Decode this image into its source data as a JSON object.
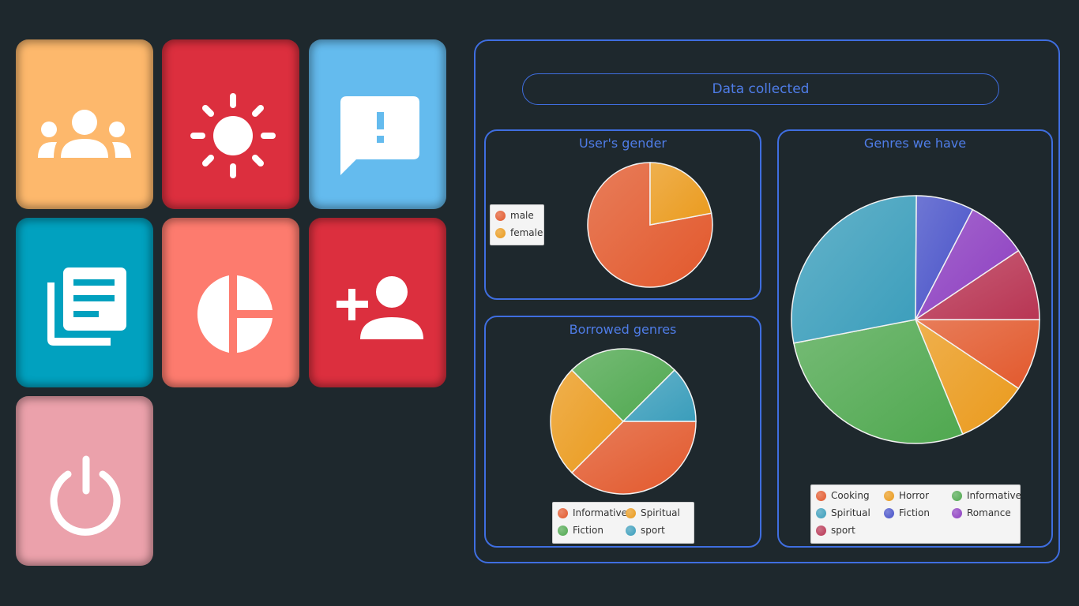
{
  "tiles": [
    {
      "name": "users",
      "icon": "group-icon",
      "color": "#fdb86c"
    },
    {
      "name": "brightness",
      "icon": "sun-icon",
      "color": "#dc2f3e"
    },
    {
      "name": "feedback",
      "icon": "feedback-icon",
      "color": "#64bbee"
    },
    {
      "name": "library",
      "icon": "library-books-icon",
      "color": "#01a1bf"
    },
    {
      "name": "statistics",
      "icon": "pie-chart-icon",
      "color": "#fd7b6e"
    },
    {
      "name": "add-user",
      "icon": "person-add-icon",
      "color": "#dc2f3e"
    },
    {
      "name": "power",
      "icon": "power-icon",
      "color": "#eba1ab"
    }
  ],
  "header": {
    "title": "Data collected"
  },
  "chart_data": [
    {
      "type": "pie",
      "title": "User's gender",
      "categories": [
        "male",
        "female"
      ],
      "values": [
        78,
        22
      ],
      "colors": [
        "#e2582c",
        "#ea9a1c"
      ],
      "legend_position": "left"
    },
    {
      "type": "pie",
      "title": "Borrowed genres",
      "categories": [
        "Informative",
        "Spiritual",
        "Fiction",
        "sport"
      ],
      "values": [
        37.5,
        25,
        25,
        12.5
      ],
      "colors": [
        "#e2582c",
        "#ea9a1c",
        "#4fa84f",
        "#3a9dbb"
      ],
      "legend_position": "bottom"
    },
    {
      "type": "pie",
      "title": "Genres we have",
      "categories": [
        "Cooking",
        "Horror",
        "Informative",
        "Spiritual",
        "Fiction",
        "Romance",
        "sport"
      ],
      "values": [
        10,
        10,
        30,
        30,
        8,
        8.5,
        10
      ],
      "colors": [
        "#e2582c",
        "#ea9a1c",
        "#4fa84f",
        "#3a9dbb",
        "#4650c8",
        "#8c3dc0",
        "#b83553"
      ],
      "legend_position": "bottom"
    }
  ]
}
